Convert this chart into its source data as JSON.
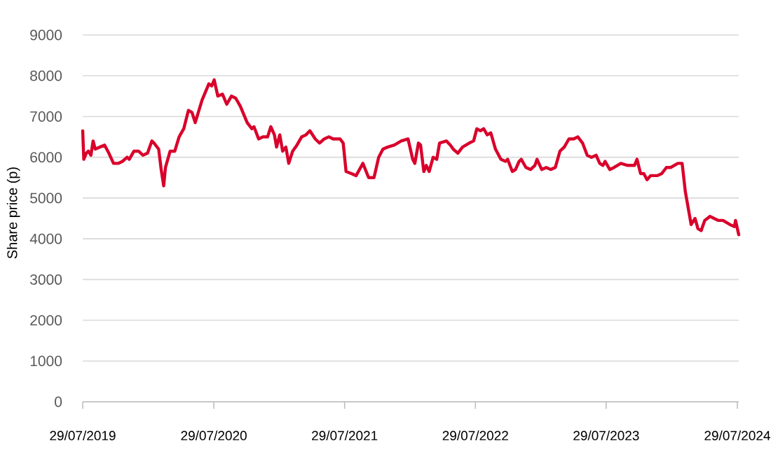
{
  "chart_data": {
    "type": "line",
    "ylabel": "Share price (p)",
    "x": [
      "2019-07-29",
      "2019-08-01",
      "2019-08-08",
      "2019-08-14",
      "2019-08-21",
      "2019-08-27",
      "2019-09-02",
      "2019-09-15",
      "2019-09-28",
      "2019-10-10",
      "2019-10-23",
      "2019-11-05",
      "2019-11-17",
      "2019-11-30",
      "2019-12-06",
      "2019-12-19",
      "2020-01-01",
      "2020-01-13",
      "2020-01-26",
      "2020-02-07",
      "2020-02-13",
      "2020-02-26",
      "2020-03-04",
      "2020-03-11",
      "2020-03-16",
      "2020-03-29",
      "2020-04-11",
      "2020-04-23",
      "2020-05-06",
      "2020-05-19",
      "2020-05-29",
      "2020-06-07",
      "2020-06-26",
      "2020-07-15",
      "2020-07-23",
      "2020-07-30",
      "2020-08-09",
      "2020-08-22",
      "2020-09-03",
      "2020-09-16",
      "2020-09-28",
      "2020-10-11",
      "2020-10-30",
      "2020-11-12",
      "2020-11-18",
      "2020-12-01",
      "2020-12-13",
      "2020-12-26",
      "2021-01-04",
      "2021-01-14",
      "2021-01-20",
      "2021-01-29",
      "2021-02-06",
      "2021-02-15",
      "2021-02-23",
      "2021-03-06",
      "2021-03-18",
      "2021-03-31",
      "2021-04-12",
      "2021-04-23",
      "2021-05-08",
      "2021-05-20",
      "2021-06-02",
      "2021-06-15",
      "2021-06-27",
      "2021-07-16",
      "2021-07-25",
      "2021-08-02",
      "2021-08-17",
      "2021-08-30",
      "2021-09-18",
      "2021-10-04",
      "2021-10-19",
      "2021-11-01",
      "2021-11-13",
      "2021-11-26",
      "2021-12-15",
      "2022-01-03",
      "2022-01-22",
      "2022-02-04",
      "2022-02-10",
      "2022-02-20",
      "2022-02-26",
      "2022-03-07",
      "2022-03-14",
      "2022-03-22",
      "2022-04-02",
      "2022-04-12",
      "2022-04-20",
      "2022-05-09",
      "2022-05-20",
      "2022-05-28",
      "2022-06-10",
      "2022-06-23",
      "2022-07-12",
      "2022-07-24",
      "2022-08-02",
      "2022-08-12",
      "2022-08-21",
      "2022-08-31",
      "2022-09-10",
      "2022-09-23",
      "2022-10-08",
      "2022-10-21",
      "2022-10-27",
      "2022-11-09",
      "2022-11-18",
      "2022-11-28",
      "2022-12-04",
      "2022-12-17",
      "2022-12-30",
      "2023-01-11",
      "2023-01-17",
      "2023-01-30",
      "2023-02-12",
      "2023-02-24",
      "2023-03-09",
      "2023-03-22",
      "2023-04-03",
      "2023-04-16",
      "2023-04-29",
      "2023-05-11",
      "2023-05-24",
      "2023-06-06",
      "2023-06-18",
      "2023-07-01",
      "2023-07-11",
      "2023-07-20",
      "2023-07-26",
      "2023-08-08",
      "2023-08-20",
      "2023-09-08",
      "2023-09-27",
      "2023-10-16",
      "2023-10-23",
      "2023-11-02",
      "2023-11-11",
      "2023-11-20",
      "2023-11-30",
      "2023-12-19",
      "2023-12-31",
      "2024-01-13",
      "2024-01-25",
      "2024-02-14",
      "2024-02-26",
      "2024-03-06",
      "2024-03-14",
      "2024-03-22",
      "2024-04-02",
      "2024-04-10",
      "2024-04-19",
      "2024-04-29",
      "2024-05-14",
      "2024-05-25",
      "2024-06-06",
      "2024-06-19",
      "2024-07-08",
      "2024-07-21",
      "2024-07-24",
      "2024-08-02"
    ],
    "series": [
      {
        "color": "#d9002b",
        "values": [
          6650,
          5950,
          6100,
          6150,
          6050,
          6400,
          6200,
          6250,
          6300,
          6100,
          5850,
          5850,
          5900,
          6000,
          5950,
          6150,
          6150,
          6050,
          6100,
          6400,
          6350,
          6200,
          5700,
          5300,
          5750,
          6150,
          6150,
          6500,
          6700,
          7150,
          7100,
          6850,
          7400,
          7800,
          7750,
          7900,
          7500,
          7550,
          7300,
          7500,
          7450,
          7250,
          6850,
          6700,
          6750,
          6450,
          6500,
          6500,
          6750,
          6550,
          6250,
          6550,
          6150,
          6250,
          5850,
          6150,
          6300,
          6500,
          6550,
          6650,
          6450,
          6350,
          6450,
          6500,
          6450,
          6450,
          6350,
          5650,
          5600,
          5550,
          5850,
          5500,
          5500,
          6000,
          6200,
          6250,
          6300,
          6400,
          6450,
          5950,
          5850,
          6350,
          6300,
          5650,
          5800,
          5650,
          6000,
          5950,
          6350,
          6400,
          6300,
          6200,
          6100,
          6250,
          6350,
          6400,
          6700,
          6650,
          6700,
          6550,
          6600,
          6200,
          5950,
          5900,
          5950,
          5650,
          5700,
          5900,
          5950,
          5750,
          5700,
          5800,
          5950,
          5700,
          5750,
          5700,
          5750,
          6150,
          6250,
          6450,
          6450,
          6500,
          6350,
          6050,
          6000,
          6050,
          5850,
          5800,
          5900,
          5700,
          5750,
          5850,
          5800,
          5800,
          5950,
          5600,
          5600,
          5450,
          5550,
          5550,
          5600,
          5750,
          5750,
          5850,
          5850,
          5150,
          4750,
          4350,
          4500,
          4250,
          4200,
          4450,
          4550,
          4500,
          4450,
          4450,
          4350,
          4300,
          4450,
          4100
        ]
      }
    ],
    "xlim": [
      "2019-07-29",
      "2024-08-02"
    ],
    "xticks": [
      {
        "value": "2019-07-29",
        "label": "29/07/2019"
      },
      {
        "value": "2020-07-29",
        "label": "29/07/2020"
      },
      {
        "value": "2021-07-29",
        "label": "29/07/2021"
      },
      {
        "value": "2022-07-29",
        "label": "29/07/2022"
      },
      {
        "value": "2023-07-29",
        "label": "29/07/2023"
      },
      {
        "value": "2024-07-29",
        "label": "29/07/2024"
      }
    ],
    "ylim": [
      0,
      9000
    ],
    "yticks": [
      0,
      1000,
      2000,
      3000,
      4000,
      5000,
      6000,
      7000,
      8000,
      9000
    ],
    "grid": "y"
  }
}
